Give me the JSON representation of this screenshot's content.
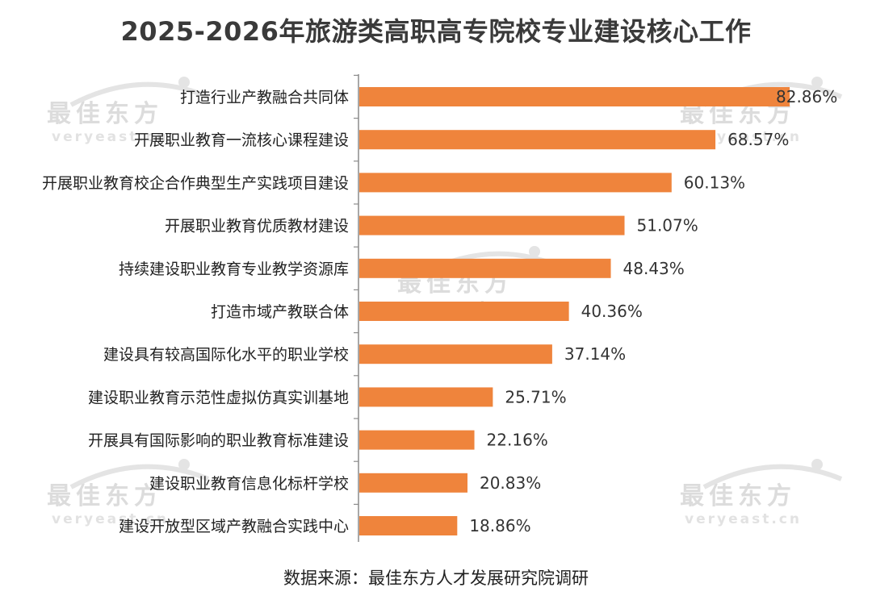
{
  "title": "2025-2026年旅游类高职高专院校专业建设核心工作",
  "source": "数据来源：最佳东方人才发展研究院调研",
  "watermark": {
    "cn": "最佳东方",
    "en": "veryeast.cn"
  },
  "colors": {
    "bar": "#ef843c",
    "axis": "#8c8c8c",
    "title": "#3a3a3a"
  },
  "chart_data": {
    "type": "bar",
    "orientation": "horizontal",
    "title": "2025-2026年旅游类高职高专院校专业建设核心工作",
    "categories": [
      "打造行业产教融合共同体",
      "开展职业教育一流核心课程建设",
      "开展职业教育校企合作典型生产实践项目建设",
      "开展职业教育优质教材建设",
      "持续建设职业教育专业教学资源库",
      "打造市域产教联合体",
      "建设具有较高国际化水平的职业学校",
      "建设职业教育示范性虚拟仿真实训基地",
      "开展具有国际影响的职业教育标准建设",
      "建设职业教育信息化标杆学校",
      "建设开放型区域产教融合实践中心"
    ],
    "values": [
      82.86,
      68.57,
      60.13,
      51.07,
      48.43,
      40.36,
      37.14,
      25.71,
      22.16,
      20.83,
      18.86
    ],
    "labels": [
      "82.86%",
      "68.57%",
      "60.13%",
      "51.07%",
      "48.43%",
      "40.36%",
      "37.14%",
      "25.71%",
      "22.16%",
      "20.83%",
      "18.86%"
    ],
    "value_unit": "%",
    "xlim": [
      0,
      82.86
    ],
    "grid": false,
    "legend": "none"
  }
}
